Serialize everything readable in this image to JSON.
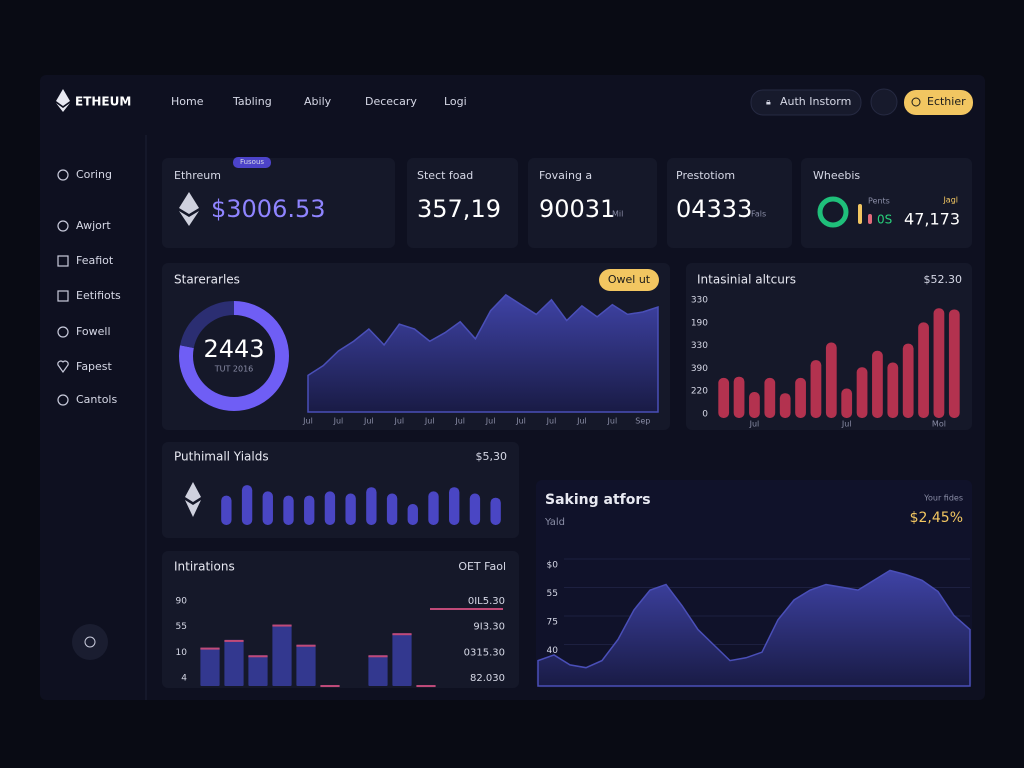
{
  "header": {
    "logo": "ETHEUM",
    "nav": [
      "Home",
      "Tabling",
      "Abily",
      "Dececary",
      "Logi"
    ],
    "auth": "Auth Instorm",
    "action": "Ecthier"
  },
  "sidebar": [
    "Coring",
    "Awjort",
    "Feafiot",
    "Eetifiots",
    "Fowell",
    "Fapest",
    "Cantols"
  ],
  "stats": [
    {
      "label": "Ethreum",
      "badge": "Fusous",
      "value": "$3006.53"
    },
    {
      "label": "Stect foad",
      "value": "357,19"
    },
    {
      "label": "Fovaing a",
      "value": "90031",
      "unit": "Mil"
    },
    {
      "label": "Prestotiom",
      "value": "04333",
      "unit": "Fals"
    },
    {
      "label": "Wheebis",
      "tag": "Pents",
      "side": "Jagl",
      "value": "47,173",
      "unit": "0S"
    }
  ],
  "chart_data": [
    {
      "type": "donut",
      "title": "Starerarles",
      "button": "Owel ut",
      "center_value": "2443",
      "center_label": "TUT 2016",
      "values": [
        78,
        22
      ],
      "colors": [
        "#6f5ef5",
        "#2b2e72"
      ]
    },
    {
      "type": "area",
      "categories": [
        "Jul",
        null,
        "Jul",
        null,
        "Jul",
        null,
        "Jul",
        null,
        "Jul",
        null,
        "Jul",
        null,
        "Jul",
        null,
        "Jul",
        null,
        "Jul",
        null,
        "Jul",
        null,
        "Jul",
        null,
        "Sep",
        null
      ],
      "values": [
        30,
        38,
        50,
        58,
        68,
        55,
        72,
        68,
        58,
        65,
        74,
        60,
        83,
        96,
        88,
        80,
        92,
        75,
        87,
        78,
        88,
        80,
        82,
        86
      ],
      "ylim": [
        0,
        100
      ],
      "color": "#4a4fb8"
    },
    {
      "type": "bar",
      "title": "Intasinial altcurs",
      "value_text": "$52.30",
      "ylabels": [
        "330",
        "190",
        "330",
        "390",
        "220",
        "0"
      ],
      "categories": [
        null,
        null,
        "Jul",
        null,
        null,
        null,
        null,
        null,
        "Jul",
        null,
        null,
        null,
        null,
        null,
        "Mol",
        null
      ],
      "values": [
        34,
        35,
        22,
        34,
        21,
        34,
        49,
        64,
        25,
        43,
        57,
        47,
        63,
        81,
        93,
        92
      ],
      "ylim": [
        0,
        100
      ],
      "color": "#b3324f"
    },
    {
      "type": "bar",
      "title": "Puthimall Yialds",
      "value_text": "$5,30",
      "values": [
        70,
        95,
        80,
        70,
        70,
        80,
        75,
        90,
        75,
        50,
        80,
        90,
        75,
        65
      ],
      "ylim": [
        0,
        100
      ],
      "color": "#4a46c4"
    },
    {
      "type": "bar",
      "title": "Intirations",
      "value_text": "OET Faol",
      "ylabels": [
        "90",
        "55",
        "10",
        "4"
      ],
      "side_labels": [
        "0IL5.30",
        "9I3.30",
        "0315.30",
        "82.030"
      ],
      "values": [
        40,
        48,
        32,
        64,
        43,
        1,
        0,
        32,
        55,
        1
      ],
      "ylim": [
        0,
        100
      ],
      "color": "#33388f",
      "cap_color": "#c04a78"
    },
    {
      "type": "area",
      "title": "Saking atfors",
      "subtitle": "Yald",
      "note": "Your fides",
      "value_text": "$2,45%",
      "ylabels": [
        "$0",
        "55",
        "75",
        "40",
        "27"
      ],
      "values": [
        18,
        22,
        15,
        13,
        18,
        33,
        54,
        68,
        72,
        57,
        40,
        29,
        18,
        20,
        24,
        47,
        61,
        68,
        72,
        70,
        68,
        75,
        82,
        79,
        75,
        67,
        50,
        40
      ],
      "ylim": [
        0,
        100
      ],
      "color": "#4a4fb8",
      "grid": true
    }
  ]
}
